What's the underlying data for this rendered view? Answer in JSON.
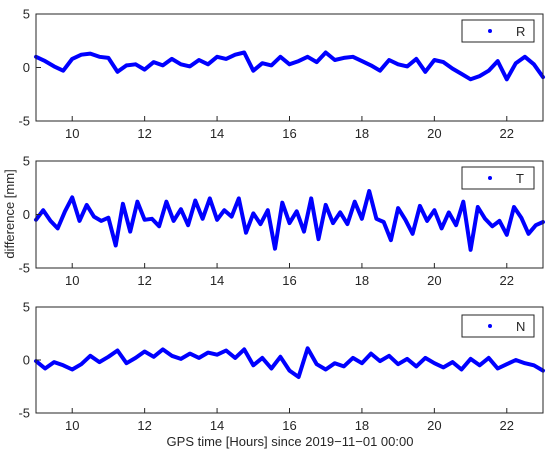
{
  "chart_data": [
    {
      "type": "line",
      "xlim": [
        9,
        23
      ],
      "ylim": [
        -5,
        5
      ],
      "xticks": [
        10,
        12,
        14,
        16,
        18,
        20,
        22
      ],
      "yticks": [
        -5,
        0,
        5
      ],
      "xtick_labels": [
        "10",
        "12",
        "14",
        "16",
        "18",
        "20",
        "22"
      ],
      "ytick_labels": [
        "-5",
        "0",
        "5"
      ],
      "grid": false,
      "legend_position": "top-right",
      "series": [
        {
          "name": "R",
          "color": "#0000ff",
          "x": [
            9.0,
            9.25,
            9.5,
            9.75,
            10.0,
            10.25,
            10.5,
            10.75,
            11.0,
            11.25,
            11.5,
            11.75,
            12.0,
            12.25,
            12.5,
            12.75,
            13.0,
            13.25,
            13.5,
            13.75,
            14.0,
            14.25,
            14.5,
            14.75,
            15.0,
            15.25,
            15.5,
            15.75,
            16.0,
            16.25,
            16.5,
            16.75,
            17.0,
            17.25,
            17.5,
            17.75,
            18.0,
            18.25,
            18.5,
            18.75,
            19.0,
            19.25,
            19.5,
            19.75,
            20.0,
            20.25,
            20.5,
            20.75,
            21.0,
            21.25,
            21.5,
            21.75,
            22.0,
            22.25,
            22.5,
            22.75,
            23.0
          ],
          "y": [
            1.0,
            0.6,
            0.1,
            -0.3,
            0.8,
            1.2,
            1.3,
            1.0,
            0.9,
            -0.4,
            0.2,
            0.3,
            -0.2,
            0.5,
            0.2,
            0.8,
            0.3,
            0.1,
            0.7,
            0.3,
            1.0,
            0.8,
            1.2,
            1.4,
            -0.3,
            0.4,
            0.2,
            1.0,
            0.3,
            0.6,
            1.0,
            0.5,
            1.4,
            0.7,
            0.9,
            1.0,
            0.6,
            0.2,
            -0.3,
            0.7,
            0.3,
            0.1,
            0.8,
            -0.4,
            0.7,
            0.5,
            -0.1,
            -0.6,
            -1.1,
            -0.8,
            -0.3,
            0.6,
            -1.1,
            0.4,
            1.0,
            0.3,
            -0.9
          ]
        }
      ]
    },
    {
      "type": "line",
      "xlim": [
        9,
        23
      ],
      "ylim": [
        -5,
        5
      ],
      "xticks": [
        10,
        12,
        14,
        16,
        18,
        20,
        22
      ],
      "yticks": [
        -5,
        0,
        5
      ],
      "xtick_labels": [
        "10",
        "12",
        "14",
        "16",
        "18",
        "20",
        "22"
      ],
      "ytick_labels": [
        "-5",
        "0",
        "5"
      ],
      "ylabel": "difference [mm]",
      "grid": false,
      "legend_position": "top-right",
      "series": [
        {
          "name": "T",
          "color": "#0000ff",
          "x": [
            9.0,
            9.2,
            9.4,
            9.6,
            9.8,
            10.0,
            10.2,
            10.4,
            10.6,
            10.8,
            11.0,
            11.2,
            11.4,
            11.6,
            11.8,
            12.0,
            12.2,
            12.4,
            12.6,
            12.8,
            13.0,
            13.2,
            13.4,
            13.6,
            13.8,
            14.0,
            14.2,
            14.4,
            14.6,
            14.8,
            15.0,
            15.2,
            15.4,
            15.6,
            15.8,
            16.0,
            16.2,
            16.4,
            16.6,
            16.8,
            17.0,
            17.2,
            17.4,
            17.6,
            17.8,
            18.0,
            18.2,
            18.4,
            18.6,
            18.8,
            19.0,
            19.2,
            19.4,
            19.6,
            19.8,
            20.0,
            20.2,
            20.4,
            20.6,
            20.8,
            21.0,
            21.2,
            21.4,
            21.6,
            21.8,
            22.0,
            22.2,
            22.4,
            22.6,
            22.8,
            23.0
          ],
          "y": [
            -0.5,
            0.4,
            -0.6,
            -1.3,
            0.3,
            1.6,
            -0.6,
            0.9,
            -0.2,
            -0.6,
            -0.3,
            -2.9,
            1.0,
            -1.6,
            1.2,
            -0.5,
            -0.4,
            -1.1,
            1.2,
            -0.6,
            0.5,
            -1.0,
            1.3,
            -0.4,
            1.5,
            -0.5,
            0.4,
            -0.2,
            1.5,
            -1.7,
            0.1,
            -0.9,
            0.4,
            -3.2,
            1.1,
            -0.8,
            0.3,
            -1.6,
            1.5,
            -2.3,
            0.9,
            -0.8,
            0.2,
            -0.9,
            1.2,
            -0.4,
            2.2,
            -0.4,
            -0.7,
            -2.4,
            0.6,
            -0.5,
            -1.8,
            0.8,
            -0.6,
            0.4,
            -1.3,
            0.2,
            -1.0,
            1.2,
            -3.3,
            0.7,
            -0.4,
            -1.1,
            -0.6,
            -1.9,
            0.7,
            -0.3,
            -1.8,
            -1.0,
            -0.7
          ]
        }
      ]
    },
    {
      "type": "line",
      "xlim": [
        9,
        23
      ],
      "ylim": [
        -5,
        5
      ],
      "xticks": [
        10,
        12,
        14,
        16,
        18,
        20,
        22
      ],
      "yticks": [
        -5,
        0,
        5
      ],
      "xtick_labels": [
        "10",
        "12",
        "14",
        "16",
        "18",
        "20",
        "22"
      ],
      "ytick_labels": [
        "-5",
        "0",
        "5"
      ],
      "xlabel": "GPS time [Hours] since 2019−11−01 00:00",
      "grid": false,
      "legend_position": "top-right",
      "series": [
        {
          "name": "N",
          "color": "#0000ff",
          "x": [
            9.0,
            9.25,
            9.5,
            9.75,
            10.0,
            10.25,
            10.5,
            10.75,
            11.0,
            11.25,
            11.5,
            11.75,
            12.0,
            12.25,
            12.5,
            12.75,
            13.0,
            13.25,
            13.5,
            13.75,
            14.0,
            14.25,
            14.5,
            14.75,
            15.0,
            15.25,
            15.5,
            15.75,
            16.0,
            16.25,
            16.5,
            16.75,
            17.0,
            17.25,
            17.5,
            17.75,
            18.0,
            18.25,
            18.5,
            18.75,
            19.0,
            19.25,
            19.5,
            19.75,
            20.0,
            20.25,
            20.5,
            20.75,
            21.0,
            21.25,
            21.5,
            21.75,
            22.0,
            22.25,
            22.5,
            22.75,
            23.0
          ],
          "y": [
            -0.1,
            -0.8,
            -0.2,
            -0.5,
            -0.9,
            -0.4,
            0.4,
            -0.2,
            0.3,
            0.9,
            -0.3,
            0.2,
            0.8,
            0.3,
            1.0,
            0.4,
            0.1,
            0.6,
            0.2,
            0.7,
            0.5,
            0.9,
            0.2,
            1.0,
            -0.5,
            0.2,
            -0.8,
            0.3,
            -1.0,
            -1.6,
            1.1,
            -0.4,
            -0.9,
            -0.3,
            -0.6,
            0.2,
            -0.3,
            0.6,
            -0.1,
            0.4,
            -0.4,
            0.1,
            -0.6,
            0.2,
            -0.3,
            -0.7,
            -0.2,
            -0.9,
            0.1,
            -0.5,
            0.2,
            -0.8,
            -0.4,
            0.0,
            -0.3,
            -0.5,
            -1.0
          ]
        }
      ]
    }
  ]
}
